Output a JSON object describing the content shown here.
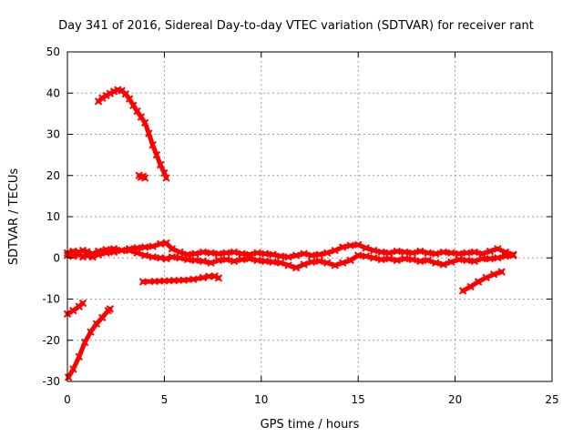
{
  "chart_data": {
    "type": "line",
    "title": "Day 341 of 2016, Sidereal Day-to-day VTEC variation (SDTVAR) for receiver rant",
    "xlabel": "GPS time / hours",
    "ylabel": "SDTVAR / TECUs",
    "xlim": [
      0,
      25
    ],
    "ylim": [
      -30,
      50
    ],
    "x_ticks": [
      0,
      5,
      10,
      15,
      20,
      25
    ],
    "y_ticks": [
      -30,
      -20,
      -10,
      0,
      10,
      20,
      30,
      40,
      50
    ],
    "x_tick_labels": [
      "0",
      "5",
      "10",
      "15",
      "20",
      "25"
    ],
    "y_tick_labels": [
      "-30",
      "-20",
      "-10",
      "0",
      "10",
      "20",
      "30",
      "40",
      "50"
    ],
    "grid": true,
    "legend": "none",
    "series_color": "#ff0000",
    "series": [
      {
        "name": "main-band-upper",
        "x": [
          0.0,
          0.3,
          0.6,
          0.8,
          1.0,
          1.3,
          1.6,
          2.0,
          2.4,
          2.8,
          3.2,
          3.6,
          4.0,
          4.4,
          4.8,
          5.1,
          5.4,
          5.8,
          6.2,
          6.6,
          7.0,
          7.4,
          7.8,
          8.2,
          8.6,
          9.0,
          9.4,
          9.8,
          10.2,
          10.6,
          11.0,
          11.4,
          11.8,
          12.2,
          12.6,
          13.0,
          13.4,
          13.8,
          14.2,
          14.6,
          15.0,
          15.4,
          15.8,
          16.2,
          16.6,
          17.0,
          17.4,
          17.8,
          18.2,
          18.6,
          19.0,
          19.4,
          19.8,
          20.2,
          20.6,
          21.0,
          21.4,
          21.8,
          22.2,
          22.6,
          23.0
        ],
        "y": [
          1.2,
          1.6,
          1.4,
          1.8,
          1.5,
          1.0,
          1.6,
          2.0,
          2.2,
          1.8,
          2.2,
          2.4,
          2.6,
          2.8,
          3.4,
          3.6,
          2.2,
          1.4,
          0.8,
          1.0,
          1.4,
          1.2,
          1.0,
          1.2,
          1.4,
          1.0,
          0.8,
          1.2,
          1.0,
          0.8,
          0.4,
          0.2,
          0.6,
          1.0,
          0.6,
          0.8,
          1.2,
          1.8,
          2.6,
          3.0,
          3.2,
          2.4,
          1.8,
          1.4,
          1.2,
          1.6,
          1.4,
          1.2,
          1.6,
          1.2,
          1.0,
          1.4,
          1.2,
          1.0,
          1.2,
          1.4,
          1.0,
          1.6,
          2.2,
          1.4,
          0.8
        ]
      },
      {
        "name": "main-band-lower",
        "x": [
          0.0,
          0.3,
          0.6,
          0.8,
          1.0,
          1.3,
          1.6,
          2.0,
          2.4,
          2.8,
          3.2,
          3.6,
          4.0,
          4.4,
          4.8,
          5.1,
          5.4,
          5.8,
          6.2,
          6.6,
          7.0,
          7.4,
          7.8,
          8.2,
          8.6,
          9.0,
          9.4,
          9.8,
          10.2,
          10.6,
          11.0,
          11.4,
          11.8,
          12.2,
          12.6,
          13.0,
          13.4,
          13.8,
          14.2,
          14.6,
          15.0,
          15.4,
          15.8,
          16.2,
          16.6,
          17.0,
          17.4,
          17.8,
          18.2,
          18.6,
          19.0,
          19.4,
          19.8,
          20.2,
          20.6,
          21.0,
          21.4,
          21.8,
          22.2,
          22.6,
          23.0
        ],
        "y": [
          0.6,
          0.4,
          0.8,
          0.2,
          0.6,
          0.2,
          0.8,
          1.2,
          1.4,
          1.8,
          1.8,
          1.2,
          0.6,
          0.2,
          0.0,
          -0.2,
          0.2,
          0.0,
          -0.4,
          -0.6,
          -0.8,
          -1.2,
          -0.6,
          -0.4,
          -0.8,
          -0.4,
          -0.2,
          -0.6,
          -0.8,
          -1.0,
          -1.2,
          -1.8,
          -2.4,
          -1.6,
          -1.0,
          -0.8,
          -1.2,
          -1.8,
          -1.2,
          -0.6,
          0.6,
          0.4,
          0.0,
          -0.4,
          -0.2,
          -0.6,
          -0.2,
          -0.4,
          -0.8,
          -0.6,
          -1.2,
          -1.6,
          -1.0,
          -0.4,
          -0.6,
          -0.8,
          -0.2,
          -0.2,
          0.0,
          0.4,
          0.6
        ]
      },
      {
        "name": "arc-upper",
        "x": [
          1.6,
          1.8,
          2.0,
          2.2,
          2.4,
          2.6,
          2.8,
          3.0,
          3.2,
          3.4,
          3.6,
          3.8,
          4.0,
          4.2,
          4.4,
          4.6,
          4.8,
          5.0,
          5.1
        ],
        "y": [
          38.0,
          38.8,
          39.4,
          39.9,
          40.4,
          40.8,
          40.6,
          39.8,
          38.6,
          37.0,
          35.6,
          34.2,
          32.8,
          30.2,
          27.4,
          25.0,
          22.6,
          20.6,
          19.4
        ]
      },
      {
        "name": "short-segment-near-20",
        "x": [
          3.7,
          3.8,
          3.9,
          4.0
        ],
        "y": [
          20.0,
          19.6,
          19.8,
          19.4
        ]
      },
      {
        "name": "flat-segment-minus-6",
        "x": [
          3.9,
          4.5,
          5.0,
          5.5,
          6.0,
          6.5,
          7.0,
          7.3,
          7.6,
          7.8
        ],
        "y": [
          -5.8,
          -5.7,
          -5.6,
          -5.5,
          -5.4,
          -5.2,
          -4.8,
          -4.5,
          -4.4,
          -4.9
        ]
      },
      {
        "name": "early-rise-segment",
        "x": [
          0.05,
          0.3,
          0.6,
          0.9,
          1.2,
          1.5,
          1.8,
          2.1,
          2.2
        ],
        "y": [
          -29.0,
          -27.0,
          -24.0,
          -20.5,
          -18.0,
          -16.0,
          -14.5,
          -12.8,
          -12.4
        ]
      },
      {
        "name": "early-short-segment",
        "x": [
          0.0,
          0.3,
          0.6,
          0.8
        ],
        "y": [
          -13.6,
          -12.8,
          -11.8,
          -11.0
        ]
      },
      {
        "name": "late-rise-segment",
        "x": [
          20.4,
          20.8,
          21.2,
          21.6,
          22.0,
          22.4
        ],
        "y": [
          -8.0,
          -7.0,
          -5.8,
          -4.8,
          -4.0,
          -3.4
        ]
      }
    ]
  }
}
